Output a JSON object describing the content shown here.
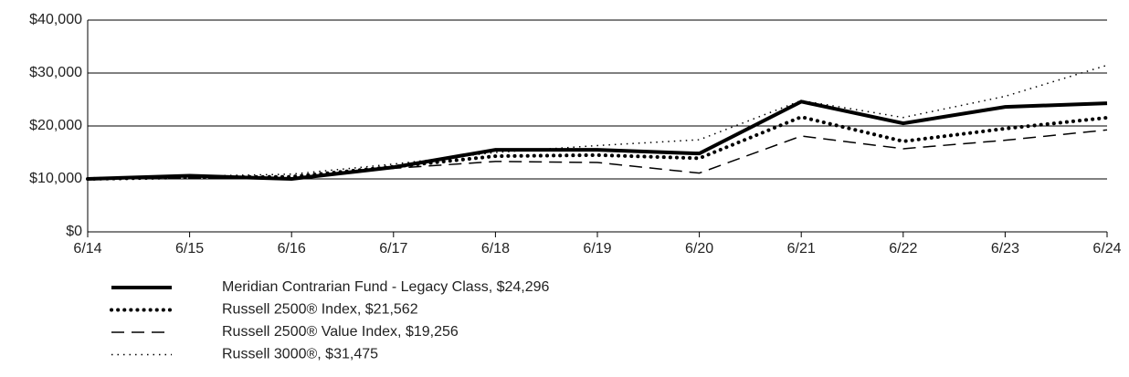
{
  "chart_data": {
    "type": "line",
    "categories": [
      "6/14",
      "6/15",
      "6/16",
      "6/17",
      "6/18",
      "6/19",
      "6/20",
      "6/21",
      "6/22",
      "6/23",
      "6/24"
    ],
    "ylim": [
      0,
      40000
    ],
    "yticks": [
      {
        "value": 0,
        "label": "$0"
      },
      {
        "value": 10000,
        "label": "$10,000"
      },
      {
        "value": 20000,
        "label": "$20,000"
      },
      {
        "value": 30000,
        "label": "$30,000"
      },
      {
        "value": 40000,
        "label": "$40,000"
      }
    ],
    "grid": true,
    "series": [
      {
        "name": "Meridian Contrarian Fund - Legacy Class, $24,296",
        "color": "#000000",
        "line_style": "solid",
        "width": 4,
        "values": [
          10000,
          10600,
          10000,
          12200,
          15500,
          15500,
          14800,
          24600,
          20500,
          23600,
          24296
        ]
      },
      {
        "name": "Russell 2500® Index, $21,562",
        "color": "#000000",
        "line_style": "dotted",
        "width": 4,
        "values": [
          10000,
          10300,
          10400,
          12300,
          14300,
          14500,
          13900,
          21700,
          17100,
          19500,
          21562
        ]
      },
      {
        "name": "Russell 2500® Value Index, $19,256",
        "color": "#000000",
        "line_style": "dashed",
        "width": 1.5,
        "values": [
          10000,
          10200,
          10100,
          12000,
          13300,
          13100,
          11100,
          18100,
          15700,
          17300,
          19256
        ]
      },
      {
        "name": "Russell 3000®, $31,475",
        "color": "#000000",
        "line_style": "fine-dotted",
        "width": 1.5,
        "values": [
          10000,
          10500,
          10900,
          12800,
          15000,
          16300,
          17400,
          24800,
          21600,
          25600,
          31475
        ]
      }
    ]
  }
}
